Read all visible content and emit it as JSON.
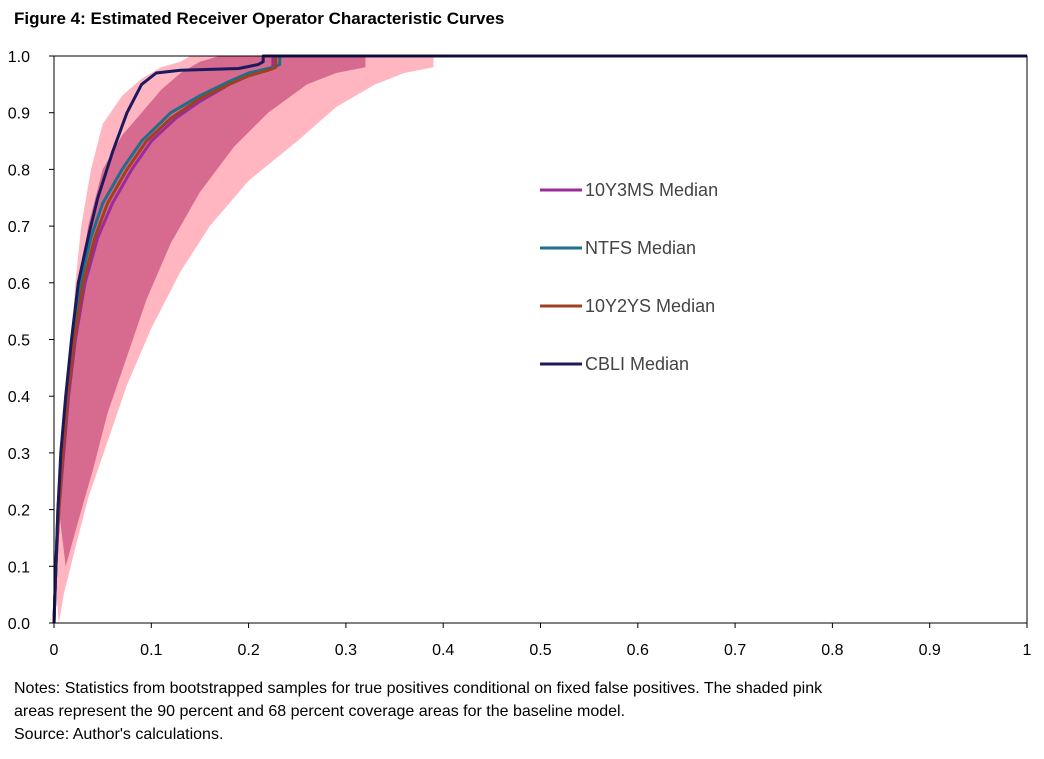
{
  "figure": {
    "title": "Figure 4: Estimated Receiver Operator Characteristic Curves",
    "notes": [
      "Notes: Statistics from bootstrapped samples for true positives conditional on fixed false positives. The shaded pink",
      "areas represent the 90 percent and 68 percent coverage areas for the baseline model.",
      "Source: Author's calculations."
    ]
  },
  "chart_data": {
    "type": "line",
    "title": "Figure 4: Estimated Receiver Operator Characteristic Curves",
    "xlabel": "",
    "ylabel": "",
    "xlim": [
      0,
      1
    ],
    "ylim": [
      0,
      1
    ],
    "x_ticks": [
      "0",
      "0.1",
      "0.2",
      "0.3",
      "0.4",
      "0.5",
      "0.6",
      "0.7",
      "0.8",
      "0.9",
      "1"
    ],
    "y_ticks": [
      "0.0",
      "0.1",
      "0.2",
      "0.3",
      "0.4",
      "0.5",
      "0.6",
      "0.7",
      "0.8",
      "0.9",
      "1.0"
    ],
    "grid": false,
    "legend_position": "center-right",
    "bands": [
      {
        "name": "90 percent coverage",
        "color": "#ffb6c1",
        "upper": [
          [
            0,
            0.1
          ],
          [
            0.003,
            0.2
          ],
          [
            0.008,
            0.3
          ],
          [
            0.012,
            0.4
          ],
          [
            0.018,
            0.5
          ],
          [
            0.022,
            0.6
          ],
          [
            0.028,
            0.7
          ],
          [
            0.038,
            0.8
          ],
          [
            0.05,
            0.88
          ],
          [
            0.07,
            0.93
          ],
          [
            0.09,
            0.96
          ],
          [
            0.11,
            0.98
          ],
          [
            0.13,
            0.99
          ],
          [
            0.14,
            1.0
          ]
        ],
        "lower": [
          [
            0.39,
            1.0
          ],
          [
            0.39,
            0.98
          ],
          [
            0.36,
            0.97
          ],
          [
            0.33,
            0.95
          ],
          [
            0.29,
            0.91
          ],
          [
            0.25,
            0.85
          ],
          [
            0.2,
            0.78
          ],
          [
            0.16,
            0.7
          ],
          [
            0.13,
            0.62
          ],
          [
            0.1,
            0.52
          ],
          [
            0.075,
            0.42
          ],
          [
            0.055,
            0.32
          ],
          [
            0.035,
            0.22
          ],
          [
            0.02,
            0.12
          ],
          [
            0.01,
            0.05
          ],
          [
            0.005,
            0
          ]
        ]
      },
      {
        "name": "68 percent coverage",
        "color": "#d66a8f",
        "upper": [
          [
            0.005,
            0.2
          ],
          [
            0.01,
            0.3
          ],
          [
            0.015,
            0.4
          ],
          [
            0.02,
            0.5
          ],
          [
            0.027,
            0.6
          ],
          [
            0.035,
            0.7
          ],
          [
            0.05,
            0.8
          ],
          [
            0.07,
            0.86
          ],
          [
            0.09,
            0.9
          ],
          [
            0.11,
            0.94
          ],
          [
            0.13,
            0.97
          ],
          [
            0.15,
            0.99
          ],
          [
            0.17,
            1.0
          ]
        ],
        "lower": [
          [
            0.32,
            1.0
          ],
          [
            0.32,
            0.98
          ],
          [
            0.29,
            0.97
          ],
          [
            0.26,
            0.95
          ],
          [
            0.22,
            0.9
          ],
          [
            0.185,
            0.84
          ],
          [
            0.15,
            0.76
          ],
          [
            0.12,
            0.67
          ],
          [
            0.095,
            0.57
          ],
          [
            0.075,
            0.47
          ],
          [
            0.055,
            0.37
          ],
          [
            0.04,
            0.27
          ],
          [
            0.025,
            0.18
          ],
          [
            0.012,
            0.1
          ]
        ]
      }
    ],
    "series": [
      {
        "name": "10Y3MS Median",
        "color": "#9b2c9b",
        "points": [
          [
            0,
            0
          ],
          [
            0.002,
            0.1
          ],
          [
            0.005,
            0.2
          ],
          [
            0.01,
            0.3
          ],
          [
            0.015,
            0.4
          ],
          [
            0.022,
            0.5
          ],
          [
            0.032,
            0.6
          ],
          [
            0.045,
            0.68
          ],
          [
            0.06,
            0.74
          ],
          [
            0.08,
            0.8
          ],
          [
            0.1,
            0.85
          ],
          [
            0.125,
            0.89
          ],
          [
            0.15,
            0.92
          ],
          [
            0.18,
            0.95
          ],
          [
            0.2,
            0.965
          ],
          [
            0.22,
            0.975
          ],
          [
            0.225,
            0.98
          ],
          [
            0.225,
            1.0
          ],
          [
            1.0,
            1.0
          ]
        ]
      },
      {
        "name": "NTFS Median",
        "color": "#1f6f8b",
        "points": [
          [
            0,
            0
          ],
          [
            0.002,
            0.1
          ],
          [
            0.004,
            0.2
          ],
          [
            0.008,
            0.3
          ],
          [
            0.013,
            0.4
          ],
          [
            0.019,
            0.5
          ],
          [
            0.027,
            0.6
          ],
          [
            0.038,
            0.68
          ],
          [
            0.05,
            0.74
          ],
          [
            0.07,
            0.8
          ],
          [
            0.09,
            0.85
          ],
          [
            0.12,
            0.9
          ],
          [
            0.15,
            0.93
          ],
          [
            0.18,
            0.955
          ],
          [
            0.2,
            0.97
          ],
          [
            0.225,
            0.98
          ],
          [
            0.232,
            0.985
          ],
          [
            0.232,
            1.0
          ],
          [
            1.0,
            1.0
          ]
        ]
      },
      {
        "name": "10Y2YS Median",
        "color": "#a0401c",
        "points": [
          [
            0,
            0
          ],
          [
            0.002,
            0.1
          ],
          [
            0.005,
            0.2
          ],
          [
            0.009,
            0.3
          ],
          [
            0.014,
            0.4
          ],
          [
            0.021,
            0.5
          ],
          [
            0.03,
            0.6
          ],
          [
            0.042,
            0.68
          ],
          [
            0.055,
            0.74
          ],
          [
            0.075,
            0.8
          ],
          [
            0.095,
            0.85
          ],
          [
            0.12,
            0.89
          ],
          [
            0.15,
            0.925
          ],
          [
            0.18,
            0.95
          ],
          [
            0.2,
            0.965
          ],
          [
            0.22,
            0.975
          ],
          [
            0.228,
            0.98
          ],
          [
            0.228,
            1.0
          ],
          [
            1.0,
            1.0
          ]
        ]
      },
      {
        "name": "CBLI Median",
        "color": "#1c1a5e",
        "points": [
          [
            0,
            0
          ],
          [
            0.002,
            0.1
          ],
          [
            0.004,
            0.2
          ],
          [
            0.007,
            0.3
          ],
          [
            0.012,
            0.4
          ],
          [
            0.018,
            0.5
          ],
          [
            0.025,
            0.6
          ],
          [
            0.035,
            0.68
          ],
          [
            0.045,
            0.75
          ],
          [
            0.06,
            0.83
          ],
          [
            0.075,
            0.9
          ],
          [
            0.09,
            0.95
          ],
          [
            0.105,
            0.97
          ],
          [
            0.13,
            0.975
          ],
          [
            0.19,
            0.978
          ],
          [
            0.21,
            0.985
          ],
          [
            0.215,
            0.99
          ],
          [
            0.215,
            1.0
          ],
          [
            1.0,
            1.0
          ]
        ]
      }
    ]
  }
}
